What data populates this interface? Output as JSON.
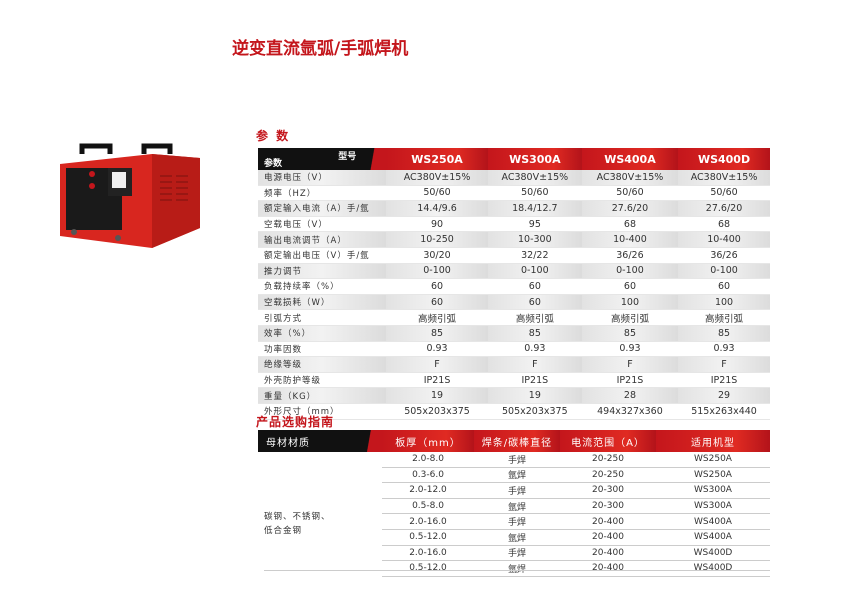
{
  "title": "逆变直流氩弧/手弧焊机",
  "spec_section": "参 数",
  "spec": {
    "corner_top": "型号",
    "corner_bottom": "参数",
    "models": [
      "WS250A",
      "WS300A",
      "WS400A",
      "WS400D"
    ],
    "rows": [
      {
        "label": "电源电压（V）",
        "values": [
          "AC380V±15%",
          "AC380V±15%",
          "AC380V±15%",
          "AC380V±15%"
        ]
      },
      {
        "label": "频率（HZ）",
        "values": [
          "50/60",
          "50/60",
          "50/60",
          "50/60"
        ]
      },
      {
        "label": "额定输入电流（A）手/氩",
        "values": [
          "14.4/9.6",
          "18.4/12.7",
          "27.6/20",
          "27.6/20"
        ]
      },
      {
        "label": "空载电压（V）",
        "values": [
          "90",
          "95",
          "68",
          "68"
        ]
      },
      {
        "label": "输出电流调节（A）",
        "values": [
          "10-250",
          "10-300",
          "10-400",
          "10-400"
        ]
      },
      {
        "label": "额定输出电压（V）手/氩",
        "values": [
          "30/20",
          "32/22",
          "36/26",
          "36/26"
        ]
      },
      {
        "label": "推力调节",
        "values": [
          "0-100",
          "0-100",
          "0-100",
          "0-100"
        ]
      },
      {
        "label": "负载持续率（%）",
        "values": [
          "60",
          "60",
          "60",
          "60"
        ]
      },
      {
        "label": "空载损耗（W）",
        "values": [
          "60",
          "60",
          "100",
          "100"
        ]
      },
      {
        "label": "引弧方式",
        "values": [
          "高频引弧",
          "高频引弧",
          "高频引弧",
          "高频引弧"
        ]
      },
      {
        "label": "效率（%）",
        "values": [
          "85",
          "85",
          "85",
          "85"
        ]
      },
      {
        "label": "功率因数",
        "values": [
          "0.93",
          "0.93",
          "0.93",
          "0.93"
        ]
      },
      {
        "label": "绝缘等级",
        "values": [
          "F",
          "F",
          "F",
          "F"
        ]
      },
      {
        "label": "外壳防护等级",
        "values": [
          "IP21S",
          "IP21S",
          "IP21S",
          "IP21S"
        ]
      },
      {
        "label": "重量（KG）",
        "values": [
          "19",
          "19",
          "28",
          "29"
        ]
      },
      {
        "label": "外形尺寸（mm）",
        "values": [
          "505x203x375",
          "505x203x375",
          "494x327x360",
          "515x263x440"
        ]
      }
    ]
  },
  "guide_section": "产品选购指南",
  "guide": {
    "headers": [
      "母材材质",
      "板厚（mm）",
      "焊条/碳棒直径",
      "电流范围（A）",
      "适用机型"
    ],
    "material_line1": "碳钢、不锈钢、",
    "material_line2": "低合金钢",
    "rows": [
      [
        "2.0-8.0",
        "手焊",
        "20-250",
        "WS250A"
      ],
      [
        "0.3-6.0",
        "氩焊",
        "20-250",
        "WS250A"
      ],
      [
        "2.0-12.0",
        "手焊",
        "20-300",
        "WS300A"
      ],
      [
        "0.5-8.0",
        "氩焊",
        "20-300",
        "WS300A"
      ],
      [
        "2.0-16.0",
        "手焊",
        "20-400",
        "WS400A"
      ],
      [
        "0.5-12.0",
        "氩焊",
        "20-400",
        "WS400A"
      ],
      [
        "2.0-16.0",
        "手焊",
        "20-400",
        "WS400D"
      ],
      [
        "0.5-12.0",
        "氩焊",
        "20-400",
        "WS400D"
      ]
    ]
  },
  "product": {
    "model_badge": "WS400"
  },
  "colors": {
    "accent": "#c4161c",
    "header_dark": "#111111"
  }
}
